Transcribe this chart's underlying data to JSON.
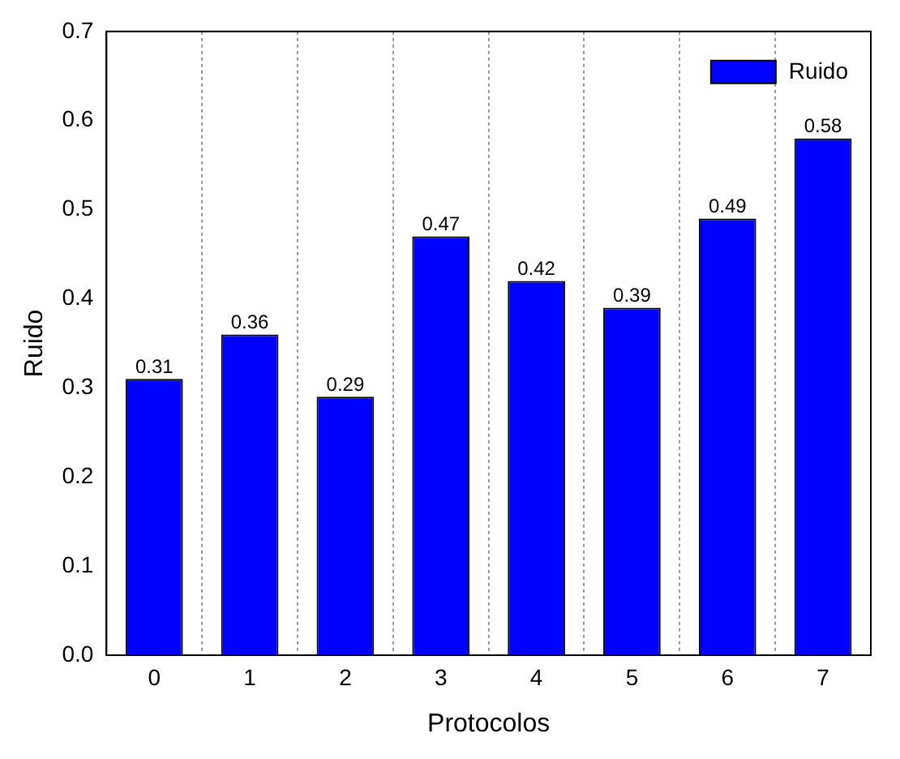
{
  "chart_data": {
    "type": "bar",
    "xlabel": "Protocolos",
    "ylabel": "Ruido",
    "categories": [
      "0",
      "1",
      "2",
      "3",
      "4",
      "5",
      "6",
      "7"
    ],
    "series": [
      {
        "name": "Ruido",
        "color": "#0000ff",
        "values": [
          0.31,
          0.36,
          0.29,
          0.47,
          0.42,
          0.39,
          0.49,
          0.58
        ]
      }
    ],
    "ylim": [
      0,
      0.7
    ],
    "yticks": [
      {
        "value": 0,
        "label": "0.0"
      },
      {
        "value": 0.1,
        "label": "0.1"
      },
      {
        "value": 0.2,
        "label": "0.2"
      },
      {
        "value": 0.3,
        "label": "0.3"
      },
      {
        "value": 0.4,
        "label": "0.4"
      },
      {
        "value": 0.5,
        "label": "0.5"
      },
      {
        "value": 0.6,
        "label": "0.6"
      },
      {
        "value": 0.7,
        "label": "0.7"
      }
    ],
    "grid": "x",
    "legend": "top right",
    "data_labels": true
  }
}
